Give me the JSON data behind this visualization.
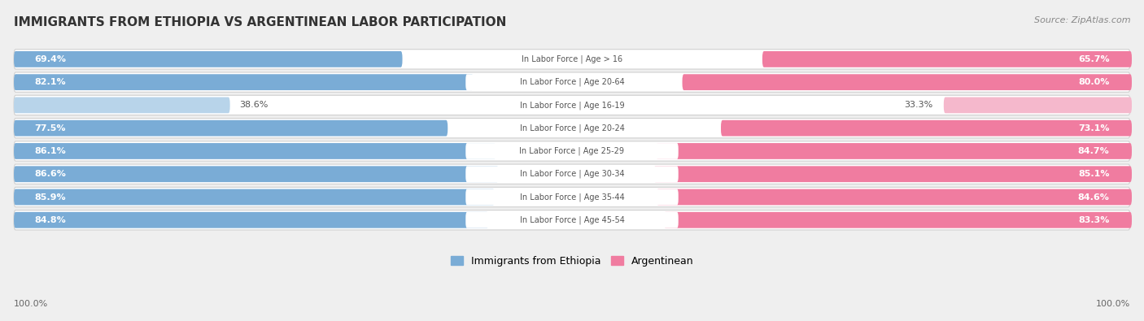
{
  "title": "IMMIGRANTS FROM ETHIOPIA VS ARGENTINEAN LABOR PARTICIPATION",
  "source": "Source: ZipAtlas.com",
  "categories": [
    "In Labor Force | Age > 16",
    "In Labor Force | Age 20-64",
    "In Labor Force | Age 16-19",
    "In Labor Force | Age 20-24",
    "In Labor Force | Age 25-29",
    "In Labor Force | Age 30-34",
    "In Labor Force | Age 35-44",
    "In Labor Force | Age 45-54"
  ],
  "ethiopia_values": [
    69.4,
    82.1,
    38.6,
    77.5,
    86.1,
    86.6,
    85.9,
    84.8
  ],
  "argentina_values": [
    65.7,
    80.0,
    33.3,
    73.1,
    84.7,
    85.1,
    84.6,
    83.3
  ],
  "ethiopia_color_strong": "#7aacd6",
  "ethiopia_color_light": "#b8d4ea",
  "argentina_color_strong": "#f07ca0",
  "argentina_color_light": "#f5b8cc",
  "bg_color": "#efefef",
  "title_fontsize": 11,
  "max_value": 100.0,
  "legend_ethiopia": "Immigrants from Ethiopia",
  "legend_argentina": "Argentinean",
  "threshold": 55
}
